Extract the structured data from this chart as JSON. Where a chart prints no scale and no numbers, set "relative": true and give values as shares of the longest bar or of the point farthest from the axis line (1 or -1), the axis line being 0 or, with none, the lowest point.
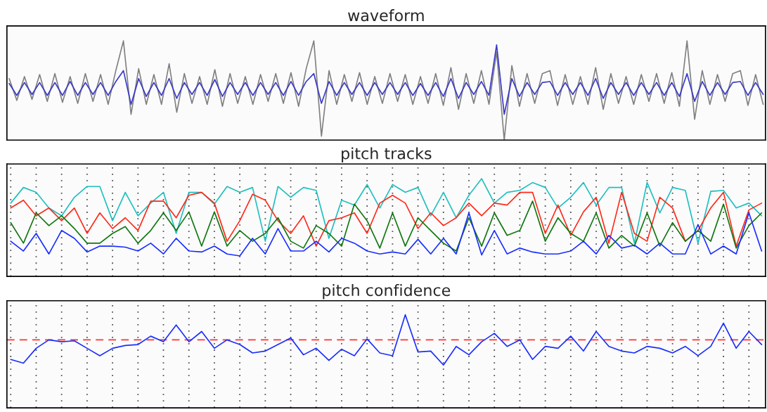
{
  "chart_data": [
    {
      "type": "line",
      "title": "waveform",
      "relative": true,
      "categories": [
        null,
        null,
        null,
        null,
        null,
        null,
        null,
        null,
        null,
        null,
        null,
        null,
        null,
        null,
        null,
        null,
        null,
        null,
        null,
        null,
        null,
        null,
        null,
        null,
        null,
        null,
        null,
        null,
        null,
        null,
        null,
        null,
        null,
        null,
        null,
        null,
        null,
        null,
        null,
        null,
        null,
        null,
        null,
        null,
        null,
        null,
        null,
        null,
        null,
        null,
        null,
        null,
        null,
        null,
        null,
        null,
        null,
        null,
        null,
        null,
        null,
        null,
        null,
        null,
        null,
        null,
        null,
        null,
        null,
        null,
        null,
        null,
        null,
        null,
        null,
        null,
        null,
        null,
        null,
        null,
        null,
        null,
        null,
        null,
        null,
        null,
        null,
        null,
        null,
        null,
        null,
        null,
        null,
        null,
        null,
        null,
        null,
        null,
        null,
        null
      ],
      "series": [
        {
          "color": "#808080",
          "values": [
            0.62,
            0.4,
            0.64,
            0.41,
            0.66,
            0.39,
            0.67,
            0.38,
            0.64,
            0.37,
            0.67,
            0.39,
            0.66,
            0.36,
            0.7,
            1.0,
            0.26,
            0.72,
            0.36,
            0.66,
            0.36,
            0.77,
            0.28,
            0.67,
            0.37,
            0.64,
            0.36,
            0.71,
            0.34,
            0.67,
            0.37,
            0.64,
            0.36,
            0.66,
            0.39,
            0.67,
            0.37,
            0.68,
            0.34,
            0.72,
            1.0,
            0.04,
            0.7,
            0.36,
            0.66,
            0.39,
            0.68,
            0.36,
            0.64,
            0.37,
            0.67,
            0.39,
            0.66,
            0.36,
            0.64,
            0.37,
            0.67,
            0.35,
            0.73,
            0.31,
            0.67,
            0.37,
            0.7,
            0.36,
            0.89,
            0.0,
            0.75,
            0.34,
            0.67,
            0.37,
            0.67,
            0.7,
            0.35,
            0.66,
            0.36,
            0.64,
            0.36,
            0.73,
            0.31,
            0.67,
            0.37,
            0.64,
            0.36,
            0.66,
            0.39,
            0.67,
            0.37,
            0.68,
            0.34,
            1.0,
            0.21,
            0.7,
            0.36,
            0.66,
            0.39,
            0.67,
            0.7,
            0.35,
            0.66,
            0.36
          ]
        },
        {
          "color": "#3a3ac8",
          "values": [
            0.57,
            0.45,
            0.58,
            0.46,
            0.58,
            0.45,
            0.58,
            0.45,
            0.59,
            0.45,
            0.58,
            0.46,
            0.58,
            0.45,
            0.59,
            0.7,
            0.36,
            0.62,
            0.44,
            0.58,
            0.45,
            0.62,
            0.42,
            0.58,
            0.46,
            0.58,
            0.45,
            0.61,
            0.44,
            0.58,
            0.46,
            0.58,
            0.45,
            0.58,
            0.46,
            0.58,
            0.45,
            0.59,
            0.45,
            0.59,
            0.67,
            0.37,
            0.59,
            0.45,
            0.58,
            0.46,
            0.58,
            0.45,
            0.58,
            0.46,
            0.58,
            0.46,
            0.58,
            0.45,
            0.57,
            0.45,
            0.58,
            0.44,
            0.62,
            0.42,
            0.58,
            0.46,
            0.59,
            0.45,
            0.96,
            0.26,
            0.62,
            0.44,
            0.58,
            0.46,
            0.58,
            0.59,
            0.45,
            0.58,
            0.46,
            0.58,
            0.45,
            0.62,
            0.42,
            0.58,
            0.46,
            0.58,
            0.45,
            0.58,
            0.46,
            0.58,
            0.45,
            0.58,
            0.44,
            0.67,
            0.39,
            0.59,
            0.45,
            0.58,
            0.46,
            0.58,
            0.59,
            0.45,
            0.58,
            0.46
          ]
        }
      ]
    },
    {
      "type": "line",
      "title": "pitch tracks",
      "relative": true,
      "grid": "x",
      "categories": [
        null,
        null,
        null,
        null,
        null,
        null,
        null,
        null,
        null,
        null,
        null,
        null,
        null,
        null,
        null,
        null,
        null,
        null,
        null,
        null,
        null,
        null,
        null,
        null,
        null,
        null,
        null,
        null,
        null,
        null,
        null,
        null,
        null,
        null,
        null,
        null,
        null,
        null,
        null,
        null,
        null,
        null,
        null,
        null,
        null,
        null,
        null,
        null,
        null,
        null,
        null,
        null,
        null,
        null,
        null,
        null,
        null,
        null,
        null,
        null
      ],
      "series": [
        {
          "color": "#1fbfbf",
          "values": [
            0.75,
            0.91,
            0.86,
            0.7,
            0.62,
            0.81,
            0.92,
            0.92,
            0.57,
            0.86,
            0.62,
            0.75,
            0.86,
            0.44,
            0.86,
            0.86,
            0.74,
            0.92,
            0.86,
            0.91,
            0.36,
            0.92,
            0.81,
            0.91,
            0.88,
            0.39,
            0.78,
            0.73,
            0.94,
            0.7,
            0.94,
            0.86,
            0.91,
            0.62,
            0.86,
            0.6,
            0.83,
            1.0,
            0.75,
            0.86,
            0.88,
            0.96,
            0.91,
            0.7,
            0.81,
            0.96,
            0.73,
            0.91,
            0.91,
            0.34,
            0.96,
            0.65,
            0.91,
            0.88,
            0.34,
            0.87,
            0.88,
            0.7,
            0.75,
            0.62
          ]
        },
        {
          "color": "#ff2a1a",
          "values": [
            0.7,
            0.78,
            0.62,
            0.7,
            0.57,
            0.7,
            0.44,
            0.65,
            0.49,
            0.6,
            0.47,
            0.77,
            0.77,
            0.6,
            0.83,
            0.86,
            0.75,
            0.36,
            0.57,
            0.84,
            0.78,
            0.57,
            0.44,
            0.62,
            0.31,
            0.57,
            0.6,
            0.65,
            0.44,
            0.75,
            0.83,
            0.75,
            0.49,
            0.65,
            0.52,
            0.6,
            0.75,
            0.62,
            0.75,
            0.73,
            0.86,
            0.86,
            0.44,
            0.73,
            0.42,
            0.66,
            0.81,
            0.34,
            0.86,
            0.44,
            0.36,
            0.81,
            0.7,
            0.36,
            0.47,
            0.7,
            0.86,
            0.31,
            0.68,
            0.75
          ]
        },
        {
          "color": "#117711",
          "values": [
            0.55,
            0.34,
            0.65,
            0.52,
            0.62,
            0.49,
            0.34,
            0.34,
            0.44,
            0.51,
            0.34,
            0.47,
            0.65,
            0.47,
            0.66,
            0.31,
            0.66,
            0.31,
            0.47,
            0.36,
            0.44,
            0.6,
            0.36,
            0.29,
            0.52,
            0.44,
            0.31,
            0.74,
            0.57,
            0.29,
            0.65,
            0.31,
            0.6,
            0.47,
            0.34,
            0.26,
            0.6,
            0.31,
            0.65,
            0.42,
            0.47,
            0.77,
            0.36,
            0.6,
            0.44,
            0.36,
            0.65,
            0.29,
            0.42,
            0.31,
            0.65,
            0.31,
            0.55,
            0.36,
            0.47,
            0.36,
            0.74,
            0.29,
            0.52,
            0.65
          ]
        },
        {
          "color": "#1a2eff",
          "values": [
            0.36,
            0.26,
            0.44,
            0.23,
            0.47,
            0.39,
            0.25,
            0.31,
            0.31,
            0.3,
            0.26,
            0.34,
            0.23,
            0.39,
            0.26,
            0.25,
            0.31,
            0.23,
            0.21,
            0.39,
            0.23,
            0.49,
            0.26,
            0.26,
            0.36,
            0.25,
            0.39,
            0.34,
            0.26,
            0.23,
            0.25,
            0.23,
            0.38,
            0.23,
            0.39,
            0.23,
            0.65,
            0.22,
            0.47,
            0.23,
            0.29,
            0.25,
            0.23,
            0.23,
            0.26,
            0.36,
            0.23,
            0.42,
            0.29,
            0.32,
            0.23,
            0.34,
            0.23,
            0.23,
            0.53,
            0.23,
            0.31,
            0.23,
            0.65,
            0.26
          ]
        }
      ]
    },
    {
      "type": "line",
      "title": "pitch confidence",
      "relative": true,
      "grid": "x",
      "categories": [
        null,
        null,
        null,
        null,
        null,
        null,
        null,
        null,
        null,
        null,
        null,
        null,
        null,
        null,
        null,
        null,
        null,
        null,
        null,
        null,
        null,
        null,
        null,
        null,
        null,
        null,
        null,
        null,
        null,
        null,
        null,
        null,
        null,
        null,
        null,
        null,
        null,
        null,
        null,
        null,
        null,
        null,
        null,
        null,
        null,
        null,
        null,
        null,
        null,
        null,
        null,
        null,
        null,
        null,
        null,
        null,
        null,
        null,
        null,
        null
      ],
      "series": [
        {
          "color": "#1a2eff",
          "values": [
            0.52,
            0.48,
            0.64,
            0.73,
            0.71,
            0.72,
            0.64,
            0.56,
            0.64,
            0.67,
            0.68,
            0.77,
            0.71,
            0.89,
            0.71,
            0.82,
            0.64,
            0.73,
            0.68,
            0.59,
            0.61,
            0.68,
            0.75,
            0.57,
            0.64,
            0.51,
            0.63,
            0.56,
            0.74,
            0.59,
            0.56,
            1.0,
            0.6,
            0.61,
            0.46,
            0.66,
            0.57,
            0.71,
            0.8,
            0.66,
            0.73,
            0.52,
            0.66,
            0.64,
            0.77,
            0.61,
            0.82,
            0.66,
            0.61,
            0.59,
            0.66,
            0.64,
            0.59,
            0.66,
            0.56,
            0.66,
            0.91,
            0.64,
            0.82,
            0.68
          ]
        }
      ],
      "ref_lines": [
        {
          "axis": "y",
          "value": 0.73,
          "color": "#ff3333",
          "line_style": "dashed"
        }
      ]
    }
  ]
}
